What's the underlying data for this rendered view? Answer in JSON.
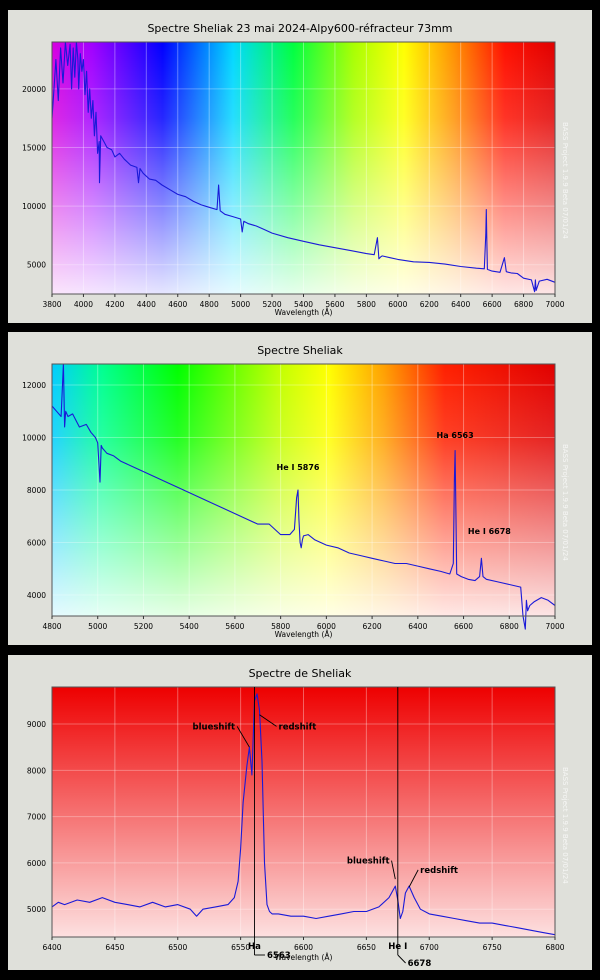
{
  "chart_data": [
    {
      "type": "line",
      "title": "Spectre Sheliak 23 mai 2024-Alpy600-réfracteur 73mm",
      "xlabel": "Wavelength (Å)",
      "ylabel": "",
      "xlim": [
        3800,
        7000
      ],
      "ylim": [
        2500,
        24000
      ],
      "x_ticks": [
        3800,
        4000,
        4200,
        4400,
        4600,
        4800,
        5000,
        5200,
        5400,
        5600,
        5800,
        6000,
        6200,
        6400,
        6600,
        6800,
        7000
      ],
      "y_ticks": [
        5000,
        10000,
        15000,
        20000
      ],
      "watermark": "BASS Project 1.9.9 Beta 07/01/24",
      "grid": true,
      "background": "visible-spectrum gradient",
      "series": [
        {
          "color": "#1a1ad8",
          "x": [
            3800,
            3810,
            3825,
            3840,
            3855,
            3870,
            3885,
            3900,
            3915,
            3925,
            3935,
            3945,
            3955,
            3965,
            3970,
            3980,
            3990,
            4000,
            4010,
            4020,
            4030,
            4040,
            4050,
            4060,
            4070,
            4080,
            4090,
            4100,
            4102,
            4110,
            4130,
            4150,
            4180,
            4200,
            4230,
            4260,
            4300,
            4340,
            4350,
            4360,
            4380,
            4420,
            4460,
            4500,
            4550,
            4600,
            4650,
            4700,
            4750,
            4800,
            4850,
            4860,
            4870,
            4900,
            4950,
            5000,
            5010,
            5020,
            5050,
            5100,
            5150,
            5200,
            5300,
            5400,
            5500,
            5600,
            5700,
            5800,
            5850,
            5870,
            5880,
            5890,
            5900,
            5950,
            6000,
            6100,
            6200,
            6300,
            6400,
            6500,
            6550,
            6560,
            6563,
            6566,
            6570,
            6600,
            6650,
            6678,
            6690,
            6720,
            6760,
            6800,
            6850,
            6870,
            6875,
            6880,
            6900,
            6950,
            7000
          ],
          "y": [
            17500,
            19500,
            22500,
            19000,
            23500,
            20500,
            24000,
            22000,
            23800,
            20000,
            23500,
            21000,
            24000,
            22500,
            20000,
            23000,
            21500,
            22500,
            19500,
            21500,
            18000,
            20000,
            17500,
            19000,
            16000,
            18000,
            14500,
            15500,
            12000,
            16000,
            15500,
            15000,
            14800,
            14200,
            14500,
            14000,
            13500,
            13300,
            12000,
            13200,
            12800,
            12300,
            12200,
            11800,
            11400,
            11000,
            10800,
            10400,
            10100,
            9900,
            9700,
            11800,
            9600,
            9300,
            9100,
            8900,
            7800,
            8700,
            8500,
            8300,
            8000,
            7700,
            7300,
            7000,
            6700,
            6450,
            6200,
            5950,
            5850,
            7300,
            5500,
            5650,
            5750,
            5600,
            5450,
            5250,
            5200,
            5050,
            4850,
            4700,
            4650,
            7600,
            9700,
            7200,
            4600,
            4450,
            4350,
            5600,
            4400,
            4300,
            4250,
            3850,
            3700,
            2700,
            3700,
            2800,
            3600,
            3750,
            3500
          ]
        }
      ]
    },
    {
      "type": "line",
      "title": "Spectre Sheliak",
      "xlabel": "Wavelength (Å)",
      "ylabel": "",
      "xlim": [
        4800,
        7000
      ],
      "ylim": [
        3200,
        12800
      ],
      "x_ticks": [
        4800,
        5000,
        5200,
        5400,
        5600,
        5800,
        6000,
        6200,
        6400,
        6600,
        6800,
        7000
      ],
      "y_ticks": [
        4000,
        6000,
        8000,
        10000,
        12000
      ],
      "watermark": "BASS Project 1.9.9 Beta 07/01/24",
      "grid": true,
      "background": "visible-spectrum gradient",
      "annotations": [
        {
          "label": "He I 5876",
          "x": 5876
        },
        {
          "label": "Ha 6563",
          "x": 6563
        },
        {
          "label": "He I 6678",
          "x": 6678
        }
      ],
      "series": [
        {
          "color": "#1a1ad8",
          "x": [
            4800,
            4820,
            4840,
            4850,
            4855,
            4860,
            4870,
            4890,
            4920,
            4950,
            4970,
            4990,
            5000,
            5010,
            5015,
            5020,
            5040,
            5070,
            5100,
            5150,
            5200,
            5250,
            5300,
            5350,
            5400,
            5450,
            5500,
            5550,
            5600,
            5650,
            5700,
            5750,
            5800,
            5840,
            5860,
            5870,
            5876,
            5880,
            5885,
            5890,
            5895,
            5900,
            5920,
            5950,
            6000,
            6050,
            6100,
            6150,
            6200,
            6250,
            6300,
            6350,
            6400,
            6450,
            6500,
            6540,
            6555,
            6560,
            6563,
            6566,
            6570,
            6590,
            6620,
            6650,
            6670,
            6678,
            6685,
            6700,
            6750,
            6800,
            6850,
            6860,
            6870,
            6875,
            6880,
            6890,
            6910,
            6940,
            6970,
            7000
          ],
          "y": [
            11200,
            11000,
            10800,
            12800,
            10400,
            11000,
            10800,
            10900,
            10400,
            10500,
            10200,
            10000,
            9800,
            8300,
            9700,
            9600,
            9400,
            9300,
            9100,
            8900,
            8700,
            8500,
            8300,
            8100,
            7900,
            7700,
            7500,
            7300,
            7100,
            6900,
            6700,
            6700,
            6300,
            6300,
            6500,
            7700,
            8000,
            6900,
            6000,
            5800,
            6100,
            6250,
            6300,
            6100,
            5900,
            5800,
            5600,
            5500,
            5400,
            5300,
            5200,
            5200,
            5100,
            5000,
            4900,
            4800,
            5200,
            8400,
            9500,
            7500,
            4800,
            4700,
            4600,
            4550,
            4700,
            5400,
            4700,
            4600,
            4500,
            4400,
            4300,
            3200,
            2700,
            3800,
            3400,
            3600,
            3750,
            3900,
            3800,
            3600
          ]
        }
      ]
    },
    {
      "type": "line",
      "title": "Spectre de Sheliak",
      "xlabel": "Wavelength (Å)",
      "ylabel": "",
      "xlim": [
        6400,
        6800
      ],
      "ylim": [
        4400,
        9800
      ],
      "x_ticks": [
        6400,
        6450,
        6500,
        6550,
        6600,
        6650,
        6700,
        6750,
        6800
      ],
      "y_ticks": [
        5000,
        6000,
        7000,
        8000,
        9000
      ],
      "watermark": "BASS Project 1.9.9 Beta 07/01/24",
      "grid": true,
      "background": "red-to-white gradient",
      "annotations": [
        {
          "label": "blueshift",
          "x": 6557
        },
        {
          "label": "redshift",
          "x": 6570
        },
        {
          "label": "Ha",
          "x": 6561
        },
        {
          "label": "6563",
          "x": 6563
        },
        {
          "label": "blueshift",
          "x": 6673
        },
        {
          "label": "redshift",
          "x": 6684
        },
        {
          "label": "He I",
          "x": 6675
        },
        {
          "label": "6678",
          "x": 6678
        }
      ],
      "series": [
        {
          "color": "#1a1ad8",
          "x": [
            6400,
            6405,
            6410,
            6420,
            6430,
            6440,
            6450,
            6460,
            6470,
            6480,
            6490,
            6500,
            6510,
            6515,
            6520,
            6530,
            6540,
            6545,
            6548,
            6550,
            6552,
            6555,
            6557,
            6559,
            6561,
            6563,
            6565,
            6567,
            6569,
            6571,
            6573,
            6575,
            6580,
            6590,
            6600,
            6610,
            6620,
            6630,
            6640,
            6650,
            6660,
            6668,
            6673,
            6675,
            6677,
            6679,
            6681,
            6684,
            6688,
            6693,
            6700,
            6710,
            6720,
            6730,
            6740,
            6750,
            6760,
            6770,
            6780,
            6790,
            6800
          ],
          "y": [
            5050,
            5150,
            5100,
            5200,
            5150,
            5250,
            5150,
            5100,
            5050,
            5150,
            5050,
            5100,
            5000,
            4850,
            5000,
            5050,
            5100,
            5250,
            5600,
            6300,
            7300,
            8100,
            8500,
            7900,
            9500,
            9650,
            9300,
            8200,
            6000,
            5100,
            4950,
            4900,
            4900,
            4850,
            4850,
            4800,
            4850,
            4900,
            4950,
            4950,
            5050,
            5250,
            5500,
            5200,
            4800,
            4950,
            5350,
            5500,
            5250,
            5000,
            4900,
            4850,
            4800,
            4750,
            4700,
            4700,
            4650,
            4600,
            4550,
            4500,
            4450
          ]
        }
      ]
    }
  ]
}
